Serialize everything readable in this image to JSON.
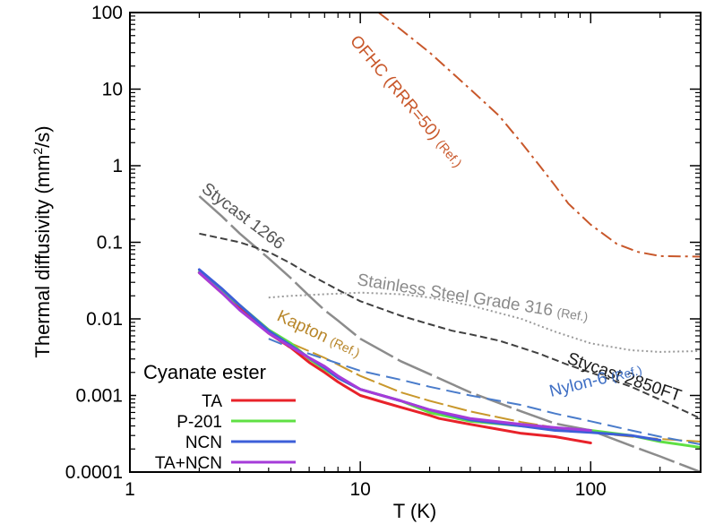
{
  "chart_data": {
    "type": "line",
    "x_scale": "log",
    "y_scale": "log",
    "xlim": [
      1,
      300
    ],
    "ylim": [
      0.0001,
      100
    ],
    "xlabel": "T  (K)",
    "ylabel_main": "Thermal diffusivity  (mm",
    "ylabel_sup": "2",
    "ylabel_end": "/s)",
    "x_ticks": [
      {
        "value": 1,
        "label": "1"
      },
      {
        "value": 10,
        "label": "10"
      },
      {
        "value": 100,
        "label": "100"
      }
    ],
    "y_ticks": [
      {
        "value": 100,
        "label": "100"
      },
      {
        "value": 10,
        "label": "10"
      },
      {
        "value": 1,
        "label": "1"
      },
      {
        "value": 0.1,
        "label": "0.1"
      },
      {
        "value": 0.01,
        "label": "0.01"
      },
      {
        "value": 0.001,
        "label": "0.001"
      },
      {
        "value": 0.0001,
        "label": "0.0001"
      }
    ],
    "legend": {
      "title": "Cyanate ester",
      "entries": [
        "TA",
        "P-201",
        "NCN",
        "TA+NCN"
      ]
    },
    "reference_series": [
      {
        "name": "OFHC (RRR=50)",
        "ref": "(Ref.)",
        "color": "#C8572A",
        "dash": "14 5 3 5",
        "width": 2,
        "points": [
          [
            12,
            100
          ],
          [
            15,
            60
          ],
          [
            20,
            30
          ],
          [
            30,
            10
          ],
          [
            40,
            4.5
          ],
          [
            50,
            2
          ],
          [
            60,
            1
          ],
          [
            70,
            0.55
          ],
          [
            80,
            0.32
          ],
          [
            100,
            0.17
          ],
          [
            130,
            0.095
          ],
          [
            160,
            0.075
          ],
          [
            200,
            0.066
          ],
          [
            300,
            0.065
          ]
        ]
      },
      {
        "name": "Stycast 1266",
        "ref": "",
        "color": "#8C8C8C",
        "dash": "42 6",
        "width": 2.5,
        "points": [
          [
            2,
            0.4
          ],
          [
            2.5,
            0.22
          ],
          [
            3,
            0.13
          ],
          [
            4,
            0.062
          ],
          [
            5,
            0.034
          ],
          [
            6,
            0.02
          ],
          [
            7,
            0.013
          ],
          [
            8,
            0.0095
          ],
          [
            10,
            0.0055
          ],
          [
            15,
            0.0028
          ],
          [
            20,
            0.0019
          ],
          [
            30,
            0.0011
          ],
          [
            50,
            0.00062
          ],
          [
            70,
            0.00043
          ],
          [
            100,
            0.00035
          ],
          [
            150,
            0.00022
          ],
          [
            200,
            0.00016
          ],
          [
            300,
            0.0001
          ]
        ]
      },
      {
        "name": "Stycast 2850FT",
        "ref": "",
        "color": "#404040",
        "dash": "8 4",
        "width": 2,
        "points": [
          [
            2,
            0.13
          ],
          [
            3,
            0.1
          ],
          [
            4,
            0.075
          ],
          [
            5,
            0.053
          ],
          [
            6,
            0.038
          ],
          [
            8,
            0.024
          ],
          [
            10,
            0.017
          ],
          [
            15,
            0.011
          ],
          [
            20,
            0.0085
          ],
          [
            25,
            0.007
          ],
          [
            30,
            0.0063
          ],
          [
            40,
            0.0052
          ],
          [
            50,
            0.0042
          ],
          [
            60,
            0.0035
          ],
          [
            80,
            0.0025
          ],
          [
            100,
            0.002
          ],
          [
            150,
            0.0013
          ],
          [
            200,
            0.00088
          ],
          [
            300,
            0.0005
          ]
        ]
      },
      {
        "name": "Stainless Steel Grade 316",
        "ref": "(Ref.)",
        "color": "#9A9A9A",
        "dash": "2 3",
        "width": 2,
        "points": [
          [
            4,
            0.019
          ],
          [
            5,
            0.02
          ],
          [
            7,
            0.021
          ],
          [
            10,
            0.022
          ],
          [
            15,
            0.021
          ],
          [
            20,
            0.019
          ],
          [
            30,
            0.015
          ],
          [
            50,
            0.01
          ],
          [
            70,
            0.0068
          ],
          [
            100,
            0.0048
          ],
          [
            150,
            0.0039
          ],
          [
            200,
            0.0037
          ],
          [
            300,
            0.0038
          ]
        ]
      },
      {
        "name": "Kapton",
        "ref": "(Ref.)",
        "color": "#C9982C",
        "dash": "22 5",
        "width": 2,
        "points": [
          [
            4,
            0.0065
          ],
          [
            5,
            0.0048
          ],
          [
            7,
            0.0031
          ],
          [
            10,
            0.0018
          ],
          [
            15,
            0.0011
          ],
          [
            20,
            0.00085
          ],
          [
            30,
            0.00062
          ],
          [
            50,
            0.00045
          ],
          [
            70,
            0.00038
          ],
          [
            100,
            0.00033
          ],
          [
            150,
            0.00029
          ],
          [
            200,
            0.00027
          ],
          [
            300,
            0.00025
          ]
        ]
      },
      {
        "name": "Nylon-6",
        "ref": "(Ref.)",
        "color": "#4A7CCB",
        "dash": "16 7",
        "width": 2,
        "points": [
          [
            4,
            0.0055
          ],
          [
            5,
            0.0042
          ],
          [
            7,
            0.003
          ],
          [
            10,
            0.0021
          ],
          [
            15,
            0.0016
          ],
          [
            20,
            0.0013
          ],
          [
            30,
            0.001
          ],
          [
            50,
            0.00075
          ],
          [
            70,
            0.00058
          ],
          [
            100,
            0.00046
          ],
          [
            150,
            0.00035
          ],
          [
            200,
            0.00029
          ],
          [
            300,
            0.00023
          ]
        ]
      }
    ],
    "series": [
      {
        "name": "TA",
        "color": "#E8222A",
        "points": [
          [
            2,
            0.04
          ],
          [
            2.5,
            0.022
          ],
          [
            3,
            0.014
          ],
          [
            4,
            0.0065
          ],
          [
            5,
            0.0042
          ],
          [
            6,
            0.0027
          ],
          [
            7,
            0.002
          ],
          [
            8,
            0.0015
          ],
          [
            10,
            0.001
          ],
          [
            12,
            0.00085
          ],
          [
            15,
            0.0007
          ],
          [
            20,
            0.00055
          ],
          [
            22,
            0.0005
          ],
          [
            30,
            0.00042
          ],
          [
            40,
            0.00036
          ],
          [
            50,
            0.00032
          ],
          [
            70,
            0.00029
          ],
          [
            100,
            0.00024
          ]
        ]
      },
      {
        "name": "P-201",
        "color": "#5FE043",
        "points": [
          [
            2,
            0.041
          ],
          [
            2.5,
            0.023
          ],
          [
            3,
            0.015
          ],
          [
            4,
            0.0072
          ],
          [
            5,
            0.0048
          ],
          [
            6,
            0.003
          ],
          [
            7,
            0.0022
          ],
          [
            8,
            0.0017
          ],
          [
            10,
            0.0012
          ],
          [
            15,
            0.00085
          ],
          [
            20,
            0.0006
          ],
          [
            30,
            0.00046
          ],
          [
            50,
            0.0004
          ],
          [
            70,
            0.00037
          ],
          [
            100,
            0.00035
          ],
          [
            150,
            0.0003
          ],
          [
            200,
            0.00025
          ],
          [
            300,
            0.00021
          ]
        ]
      },
      {
        "name": "NCN",
        "color": "#3D5FD8",
        "points": [
          [
            2,
            0.044
          ],
          [
            2.5,
            0.025
          ],
          [
            3,
            0.015
          ],
          [
            4,
            0.007
          ],
          [
            5,
            0.0045
          ],
          [
            6,
            0.0031
          ],
          [
            7,
            0.0023
          ],
          [
            8,
            0.0017
          ],
          [
            10,
            0.0012
          ],
          [
            15,
            0.00085
          ],
          [
            20,
            0.00065
          ],
          [
            30,
            0.00048
          ],
          [
            50,
            0.0004
          ],
          [
            70,
            0.00035
          ],
          [
            100,
            0.00033
          ],
          [
            150,
            0.0003
          ],
          [
            200,
            0.00026
          ]
        ]
      },
      {
        "name": "TA+NCN",
        "color": "#A53BD9",
        "points": [
          [
            2,
            0.04
          ],
          [
            2.5,
            0.022
          ],
          [
            3,
            0.013
          ],
          [
            4,
            0.0065
          ],
          [
            5,
            0.0043
          ],
          [
            6,
            0.0031
          ],
          [
            7,
            0.0024
          ],
          [
            8,
            0.0018
          ],
          [
            10,
            0.0012
          ],
          [
            15,
            0.00085
          ],
          [
            20,
            0.00065
          ],
          [
            30,
            0.0005
          ],
          [
            50,
            0.00042
          ],
          [
            70,
            0.00038
          ],
          [
            100,
            0.00035
          ]
        ]
      }
    ],
    "annotations": {
      "ofhc": {
        "label": "OFHC (RRR=50)",
        "ref": "(Ref.)",
        "color": "#C8572A"
      },
      "stycast1266": {
        "label": "Stycast 1266",
        "color": "#555555"
      },
      "stycast2850": {
        "label": "Stycast 2850FT",
        "color": "#1A1A1A"
      },
      "stainless": {
        "label": "Stainless Steel Grade 316",
        "ref": "(Ref.)",
        "color": "#8A8A8A"
      },
      "kapton": {
        "label": "Kapton",
        "ref": "(Ref.)",
        "color": "#B8862A"
      },
      "nylon": {
        "label": "Nylon-6",
        "ref": "(Ref.)",
        "color": "#3F6FC4"
      }
    }
  }
}
